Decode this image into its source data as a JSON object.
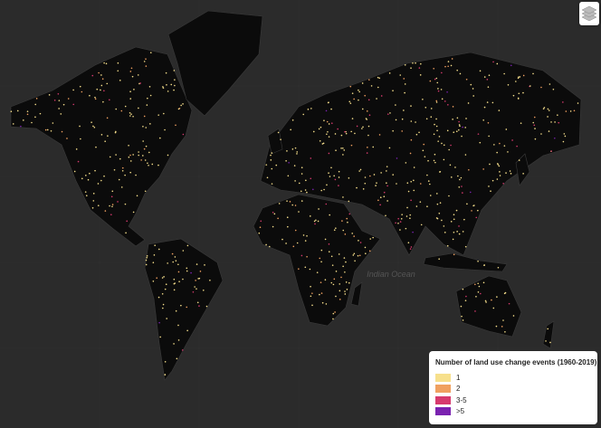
{
  "map": {
    "ocean_labels": [
      "Indian Ocean"
    ]
  },
  "legend": {
    "title": "Number of land use change events (1960-2019)",
    "items": [
      {
        "label": "1",
        "color": "#f7e08c"
      },
      {
        "label": "2",
        "color": "#f0a060"
      },
      {
        "label": "3-5",
        "color": "#d63a6e"
      },
      {
        "label": ">5",
        "color": "#7a22b0"
      }
    ]
  }
}
